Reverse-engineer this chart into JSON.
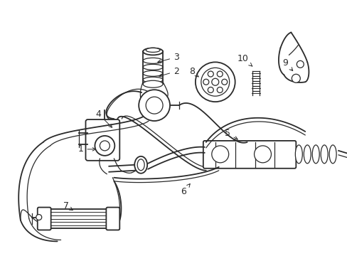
{
  "bg_color": "#ffffff",
  "line_color": "#2a2a2a",
  "figsize": [
    4.89,
    3.6
  ],
  "dpi": 100,
  "labels": {
    "1": [
      0.215,
      0.455,
      0.245,
      0.455
    ],
    "2": [
      0.39,
      0.77,
      0.365,
      0.762
    ],
    "3": [
      0.4,
      0.822,
      0.368,
      0.81
    ],
    "4": [
      0.215,
      0.72,
      0.228,
      0.69
    ],
    "5": [
      0.57,
      0.54,
      0.565,
      0.518
    ],
    "6": [
      0.415,
      0.31,
      0.418,
      0.33
    ],
    "7": [
      0.155,
      0.32,
      0.16,
      0.305
    ],
    "8": [
      0.488,
      0.778,
      0.503,
      0.768
    ],
    "9": [
      0.79,
      0.758,
      0.79,
      0.74
    ],
    "10": [
      0.57,
      0.808,
      0.572,
      0.792
    ]
  }
}
